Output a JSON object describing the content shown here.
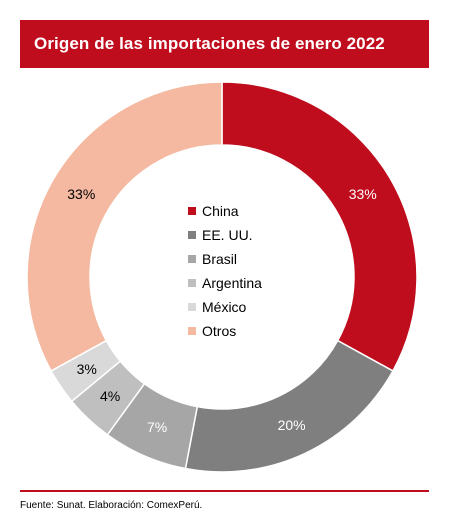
{
  "title": "Origen de las importaciones  de enero 2022",
  "source": "Fuente: Sunat. Elaboración: ComexPerú.",
  "chart_data": {
    "type": "pie",
    "subtype": "donut",
    "legend_position": "center",
    "categories": [
      "China",
      "EE. UU.",
      "Brasil",
      "Argentina",
      "México",
      "Otros"
    ],
    "values": [
      33,
      20,
      7,
      4,
      3,
      33
    ],
    "labels": [
      "33%",
      "20%",
      "7%",
      "4%",
      "3%",
      "33%"
    ],
    "colors": [
      "#c00d1e",
      "#7f7f7f",
      "#a6a6a6",
      "#bfbfbf",
      "#d9d9d9",
      "#f4b9a0"
    ],
    "label_colors": [
      "#ffffff",
      "#ffffff",
      "#ffffff",
      "#000000",
      "#000000",
      "#000000"
    ]
  }
}
